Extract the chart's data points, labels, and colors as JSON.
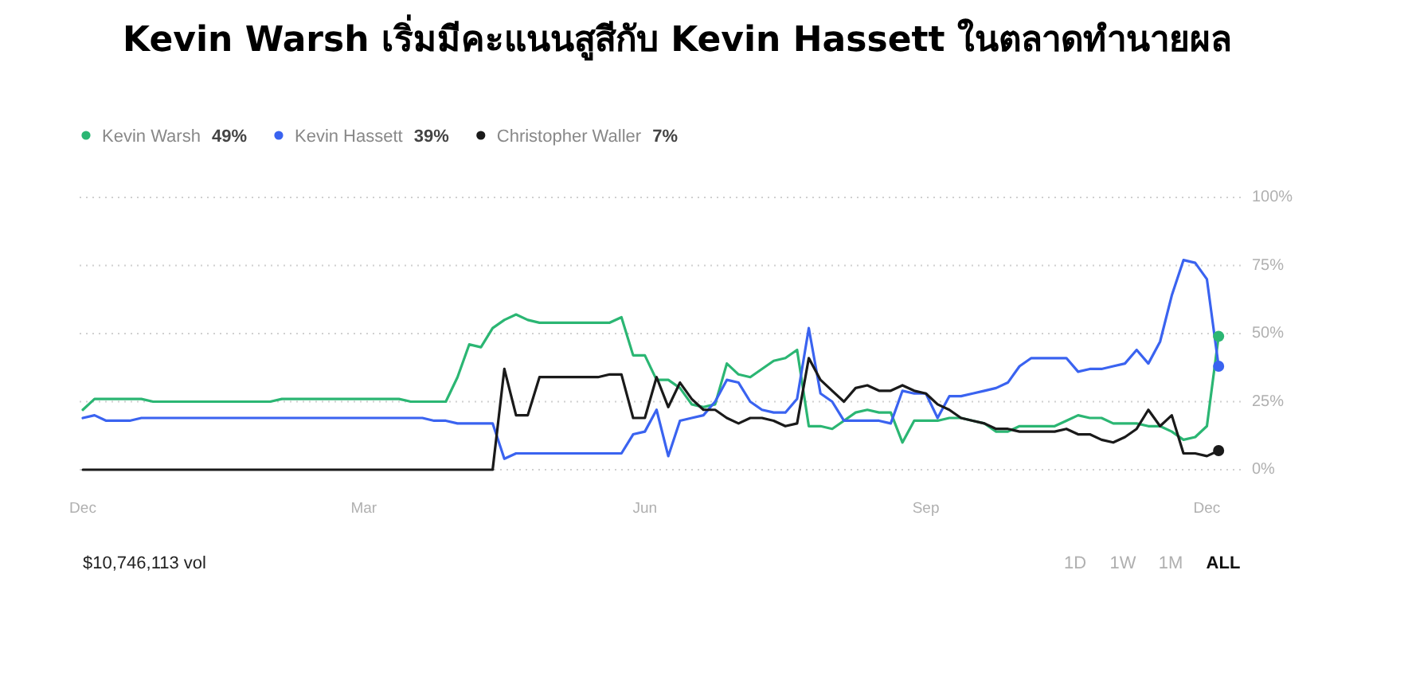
{
  "chart_data": {
    "type": "line",
    "title": "Kevin Warsh เริ่มมีคะแนนสูสีกับ Kevin Hassett ในตลาดทำนายผล",
    "categories": [
      "Dec",
      null,
      null,
      null,
      null,
      null,
      null,
      null,
      null,
      null,
      null,
      null,
      null,
      null,
      null,
      null,
      null,
      null,
      null,
      null,
      null,
      null,
      null,
      null,
      "Mar",
      null,
      null,
      null,
      null,
      null,
      null,
      null,
      null,
      null,
      null,
      null,
      null,
      null,
      null,
      null,
      null,
      null,
      null,
      null,
      null,
      null,
      null,
      null,
      "Jun",
      null,
      null,
      null,
      null,
      null,
      null,
      null,
      null,
      null,
      null,
      null,
      null,
      null,
      null,
      null,
      null,
      null,
      null,
      null,
      null,
      null,
      null,
      null,
      "Sep",
      null,
      null,
      null,
      null,
      null,
      null,
      null,
      null,
      null,
      null,
      null,
      null,
      null,
      null,
      null,
      null,
      null,
      null,
      null,
      null,
      null,
      null,
      null,
      "Dec",
      null
    ],
    "ylim": [
      0,
      100
    ],
    "yticks": [
      {
        "value": 0,
        "label": "0%"
      },
      {
        "value": 25,
        "label": "25%"
      },
      {
        "value": 50,
        "label": "50%"
      },
      {
        "value": 75,
        "label": "75%"
      },
      {
        "value": 100,
        "label": "100%"
      }
    ],
    "grid": "y",
    "legend": "top left",
    "line_style": "solid",
    "marker": "none",
    "annotations": [
      "$10,746,113 vol",
      "1D",
      "1W",
      "1M",
      "ALL"
    ],
    "series": [
      {
        "name": "Kevin Warsh 49%",
        "color": "#2bb673",
        "values": [
          22,
          26,
          26,
          26,
          26,
          26,
          25,
          25,
          25,
          25,
          25,
          25,
          25,
          25,
          25,
          25,
          25,
          26,
          26,
          26,
          26,
          26,
          26,
          26,
          26,
          26,
          26,
          26,
          25,
          25,
          25,
          25,
          34,
          46,
          45,
          52,
          55,
          57,
          55,
          54,
          54,
          54,
          54,
          54,
          54,
          54,
          56,
          42,
          42,
          33,
          33,
          30,
          24,
          23,
          24,
          39,
          35,
          34,
          37,
          40,
          41,
          44,
          16,
          16,
          15,
          18,
          21,
          22,
          21,
          21,
          10,
          18,
          18,
          18,
          19,
          19,
          18,
          17,
          14,
          14,
          16,
          16,
          16,
          16,
          18,
          20,
          19,
          19,
          17,
          17,
          17,
          16,
          16,
          14,
          11,
          12,
          16,
          49
        ]
      },
      {
        "name": "Kevin Hassett 39%",
        "color": "#3a63f0",
        "values": [
          19,
          20,
          18,
          18,
          18,
          19,
          19,
          19,
          19,
          19,
          19,
          19,
          19,
          19,
          19,
          19,
          19,
          19,
          19,
          19,
          19,
          19,
          19,
          19,
          19,
          19,
          19,
          19,
          19,
          19,
          18,
          18,
          17,
          17,
          17,
          17,
          4,
          6,
          6,
          6,
          6,
          6,
          6,
          6,
          6,
          6,
          6,
          13,
          14,
          22,
          5,
          18,
          19,
          20,
          25,
          33,
          32,
          25,
          22,
          21,
          21,
          26,
          52,
          28,
          25,
          18,
          18,
          18,
          18,
          17,
          29,
          28,
          28,
          19,
          27,
          27,
          28,
          29,
          30,
          32,
          38,
          41,
          41,
          41,
          41,
          36,
          37,
          37,
          38,
          39,
          44,
          39,
          47,
          64,
          77,
          76,
          70,
          38
        ]
      },
      {
        "name": "Christopher Waller 7%",
        "color": "#1a1a1a",
        "values": [
          0,
          0,
          0,
          0,
          0,
          0,
          0,
          0,
          0,
          0,
          0,
          0,
          0,
          0,
          0,
          0,
          0,
          0,
          0,
          0,
          0,
          0,
          0,
          0,
          0,
          0,
          0,
          0,
          0,
          0,
          0,
          0,
          0,
          0,
          0,
          0,
          37,
          20,
          20,
          34,
          34,
          34,
          34,
          34,
          34,
          35,
          35,
          19,
          19,
          34,
          23,
          32,
          26,
          22,
          22,
          19,
          17,
          19,
          19,
          18,
          16,
          17,
          41,
          33,
          29,
          25,
          30,
          31,
          29,
          29,
          31,
          29,
          28,
          24,
          22,
          19,
          18,
          17,
          15,
          15,
          14,
          14,
          14,
          14,
          15,
          13,
          13,
          11,
          10,
          12,
          15,
          22,
          16,
          20,
          6,
          6,
          5,
          7
        ]
      },
      {
        "color": "#2bb673",
        "type": "scatter",
        "marker": "circle",
        "values": [
          null,
          null,
          null,
          null,
          null,
          null,
          null,
          null,
          null,
          null,
          null,
          null,
          null,
          null,
          null,
          null,
          null,
          null,
          null,
          null,
          null,
          null,
          null,
          null,
          null,
          null,
          null,
          null,
          null,
          null,
          null,
          null,
          null,
          null,
          null,
          null,
          null,
          null,
          null,
          null,
          null,
          null,
          null,
          null,
          null,
          null,
          null,
          null,
          null,
          null,
          null,
          null,
          null,
          null,
          null,
          null,
          null,
          null,
          null,
          null,
          null,
          null,
          null,
          null,
          null,
          null,
          null,
          null,
          null,
          null,
          null,
          null,
          null,
          null,
          null,
          null,
          null,
          null,
          null,
          null,
          null,
          null,
          null,
          null,
          null,
          null,
          null,
          null,
          null,
          null,
          null,
          null,
          null,
          null,
          null,
          null,
          null,
          49
        ]
      },
      {
        "color": "#3a63f0",
        "type": "scatter",
        "marker": "circle",
        "values": [
          null,
          null,
          null,
          null,
          null,
          null,
          null,
          null,
          null,
          null,
          null,
          null,
          null,
          null,
          null,
          null,
          null,
          null,
          null,
          null,
          null,
          null,
          null,
          null,
          null,
          null,
          null,
          null,
          null,
          null,
          null,
          null,
          null,
          null,
          null,
          null,
          null,
          null,
          null,
          null,
          null,
          null,
          null,
          null,
          null,
          null,
          null,
          null,
          null,
          null,
          null,
          null,
          null,
          null,
          null,
          null,
          null,
          null,
          null,
          null,
          null,
          null,
          null,
          null,
          null,
          null,
          null,
          null,
          null,
          null,
          null,
          null,
          null,
          null,
          null,
          null,
          null,
          null,
          null,
          null,
          null,
          null,
          null,
          null,
          null,
          null,
          null,
          null,
          null,
          null,
          null,
          null,
          null,
          null,
          null,
          null,
          null,
          38
        ]
      },
      {
        "color": "#1a1a1a",
        "type": "scatter",
        "marker": "circle",
        "values": [
          null,
          null,
          null,
          null,
          null,
          null,
          null,
          null,
          null,
          null,
          null,
          null,
          null,
          null,
          null,
          null,
          null,
          null,
          null,
          null,
          null,
          null,
          null,
          null,
          null,
          null,
          null,
          null,
          null,
          null,
          null,
          null,
          null,
          null,
          null,
          null,
          null,
          null,
          null,
          null,
          null,
          null,
          null,
          null,
          null,
          null,
          null,
          null,
          null,
          null,
          null,
          null,
          null,
          null,
          null,
          null,
          null,
          null,
          null,
          null,
          null,
          null,
          null,
          null,
          null,
          null,
          null,
          null,
          null,
          null,
          null,
          null,
          null,
          null,
          null,
          null,
          null,
          null,
          null,
          null,
          null,
          null,
          null,
          null,
          null,
          null,
          null,
          null,
          null,
          null,
          null,
          null,
          null,
          null,
          null,
          null,
          null,
          7
        ]
      }
    ]
  }
}
